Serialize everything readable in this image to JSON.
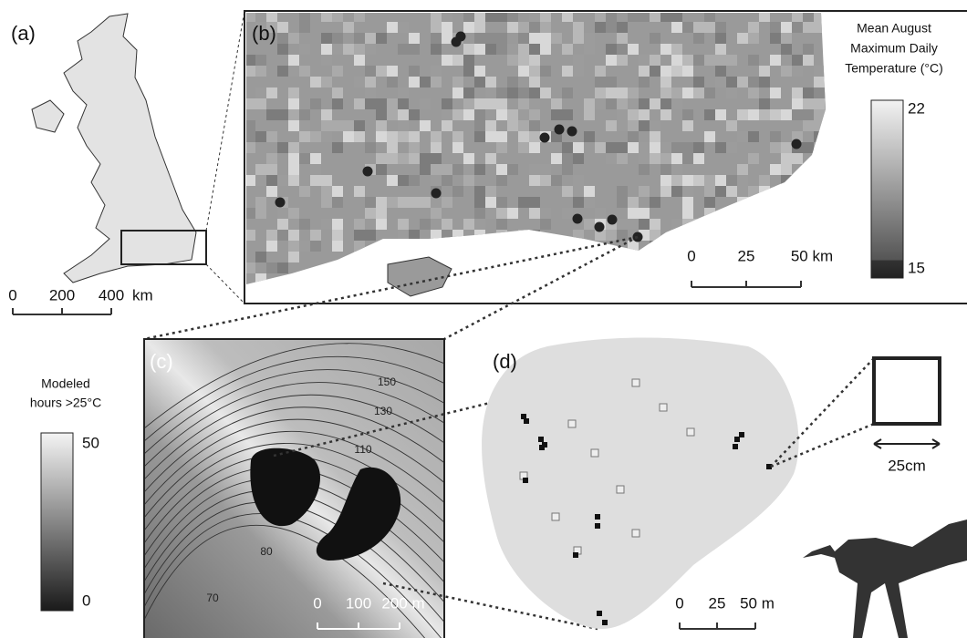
{
  "panels": {
    "a": {
      "label": "(a)",
      "scale_bar": {
        "ticks": [
          "0",
          "200",
          "400"
        ],
        "unit": "km"
      }
    },
    "b": {
      "label": "(b)",
      "legend": {
        "title_lines": [
          "Mean August",
          "Maximum Daily",
          "Temperature (°C)"
        ],
        "max": "22",
        "min": "15"
      },
      "scale_bar": {
        "ticks": [
          "0",
          "25",
          "50 km"
        ]
      }
    },
    "c": {
      "label": "(c)",
      "legend": {
        "title_lines": [
          "Modeled",
          "hours >25°C"
        ],
        "max": "50",
        "min": "0"
      },
      "contour_labels": [
        "150",
        "130",
        "110",
        "80",
        "70"
      ],
      "scale_bar": {
        "ticks": [
          "0",
          "100",
          "200 m"
        ]
      }
    },
    "d": {
      "label": "(d)",
      "scale_bar": {
        "ticks": [
          "0",
          "25",
          "50 m"
        ]
      },
      "inset_label": "25cm"
    }
  }
}
